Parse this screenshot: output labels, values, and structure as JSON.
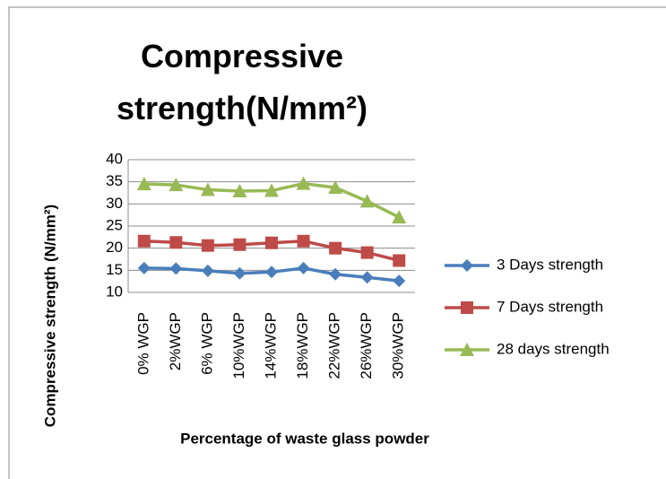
{
  "chart_data": {
    "type": "line",
    "title": "Compressive strength(N/mm²)",
    "x_label": "Percentage of waste glass powder",
    "y_label": "Compressive strength (N/mm²)",
    "categories": [
      "0% WGP",
      "2%WGP",
      "6% WGP",
      "10%WGP",
      "14%WGP",
      "18%WGP",
      "22%WGP",
      "26%WGP",
      "30%WGP"
    ],
    "series": [
      {
        "name": "3 Days strength",
        "color": "#4a7ebb",
        "marker": "diamond",
        "values": [
          15.5,
          15.4,
          14.9,
          14.3,
          14.6,
          15.5,
          14.1,
          13.4,
          12.6
        ]
      },
      {
        "name": "7 Days strength",
        "color": "#be4b48",
        "marker": "square",
        "values": [
          21.6,
          21.3,
          20.6,
          20.8,
          21.2,
          21.6,
          20.0,
          19.0,
          17.2
        ]
      },
      {
        "name": "28 days strength",
        "color": "#98b954",
        "marker": "triangle",
        "values": [
          34.5,
          34.3,
          33.2,
          32.9,
          33.0,
          34.6,
          33.7,
          30.6,
          27.0
        ]
      }
    ],
    "ylim": [
      10,
      40
    ],
    "yticks": [
      10,
      15,
      20,
      25,
      30,
      35,
      40
    ],
    "grid": true,
    "legend": "right"
  }
}
